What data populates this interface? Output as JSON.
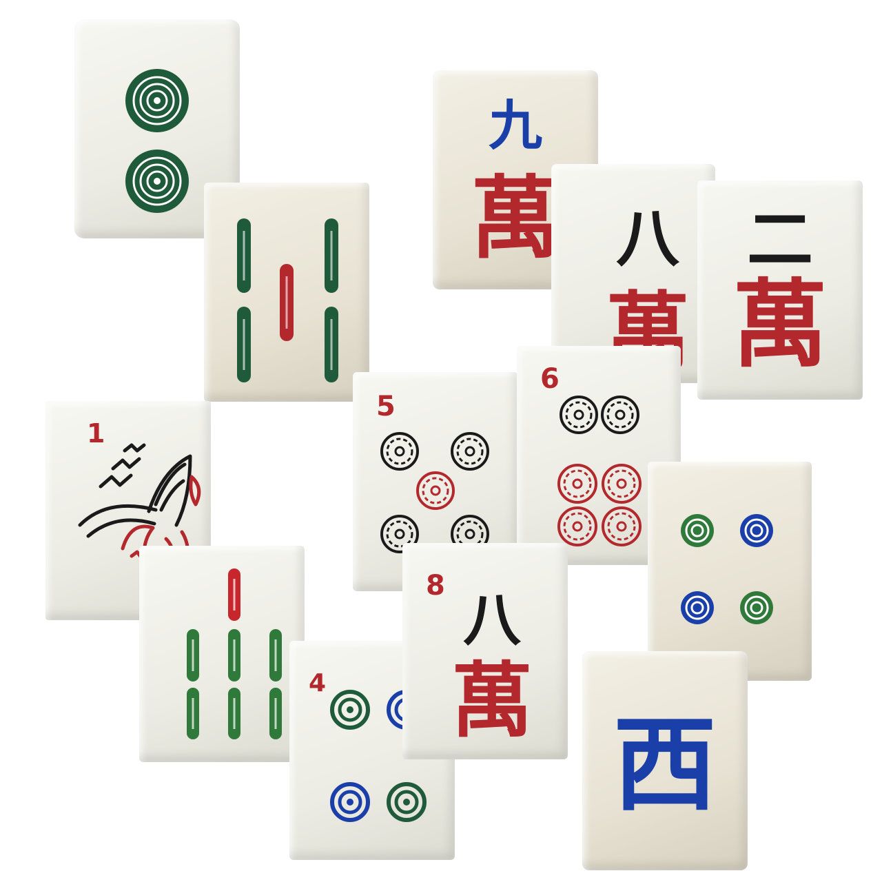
{
  "tiles": {
    "dots_two": {},
    "bamboo_five": {},
    "char_nine": {
      "number": "九",
      "suit": "萬"
    },
    "char_eight_back": {
      "number": "八",
      "suit": "萬"
    },
    "char_two": {
      "number": "二",
      "suit": "萬"
    },
    "bird_one": {
      "index": "1"
    },
    "dots_five": {
      "index": "5"
    },
    "dots_six": {
      "index": "6"
    },
    "dots_four_right": {},
    "bamboo_seven": {},
    "dots_four": {
      "index": "4"
    },
    "char_eight": {
      "index": "8",
      "number": "八",
      "suit": "萬"
    },
    "west_wind": {
      "glyph": "西"
    }
  },
  "colors": {
    "green": "#1f5a3a",
    "red": "#b3282d",
    "blue": "#1a3fa8",
    "black": "#1a1a1a"
  }
}
